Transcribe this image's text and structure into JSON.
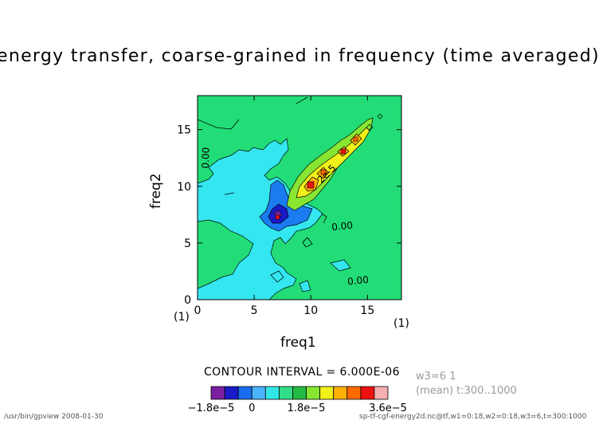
{
  "title": "energy transfer, coarse-grained in frequency (time averaged)",
  "chart_data": {
    "type": "heatmap",
    "x": [
      0,
      1,
      2,
      3,
      4,
      5,
      6,
      7,
      8,
      9,
      10,
      11,
      12,
      13,
      14,
      15,
      16,
      17,
      18
    ],
    "y": [
      0,
      1,
      2,
      3,
      4,
      5,
      6,
      7,
      8,
      9,
      10,
      11,
      12,
      13,
      14,
      15,
      16,
      17,
      18
    ],
    "xlabel": "freq1",
    "ylabel": "freq2",
    "xlim": [
      0,
      18
    ],
    "ylim": [
      0,
      18
    ],
    "xticks": [
      "0",
      "5",
      "10",
      "15"
    ],
    "yticks": [
      "0",
      "5",
      "10",
      "15"
    ],
    "x_unit": "(1)",
    "y_unit": "(1)",
    "contour_labels": [
      {
        "text": "0.00",
        "x": 1.0,
        "y": 12.5,
        "rotation": -88
      },
      {
        "text": "2e-5",
        "x": 11.6,
        "y": 10.9,
        "rotation": -45
      },
      {
        "text": "0.00",
        "x": 12.8,
        "y": 6.2,
        "rotation": -6
      },
      {
        "text": "0.00",
        "x": 14.2,
        "y": 1.4,
        "rotation": -6
      }
    ],
    "features": [
      {
        "kind": "negative-minimum",
        "x": 7,
        "y": 7,
        "value": -1.8e-05
      },
      {
        "kind": "positive-ridge",
        "from": [
          9,
          9
        ],
        "to": [
          16,
          16
        ],
        "peak_value": 3.6e-05
      }
    ],
    "contour_interval": "CONTOUR INTERVAL = 6.000E-06",
    "colorbar": {
      "colors": [
        "#7a1fa2",
        "#1a1ac8",
        "#1a6cf0",
        "#4ab4ff",
        "#33e6e6",
        "#33dd88",
        "#22bb44",
        "#88e633",
        "#f0f01a",
        "#ffb000",
        "#ff6a00",
        "#ee1111",
        "#f4b0b0"
      ],
      "labels": [
        "−1.8e−5",
        "0",
        "1.8e−5",
        "3.6e−5"
      ]
    },
    "grid": false
  },
  "info": {
    "slice": "w3=6 1",
    "mean": "(mean) t:300..1000"
  },
  "footer": {
    "left": "/usr/bin/gpview  2008-01-30",
    "right": "sp-tf-cgf-energy2d.nc@tf,w1=0:18,w2=0:18,w3=6,t=300:1000"
  }
}
